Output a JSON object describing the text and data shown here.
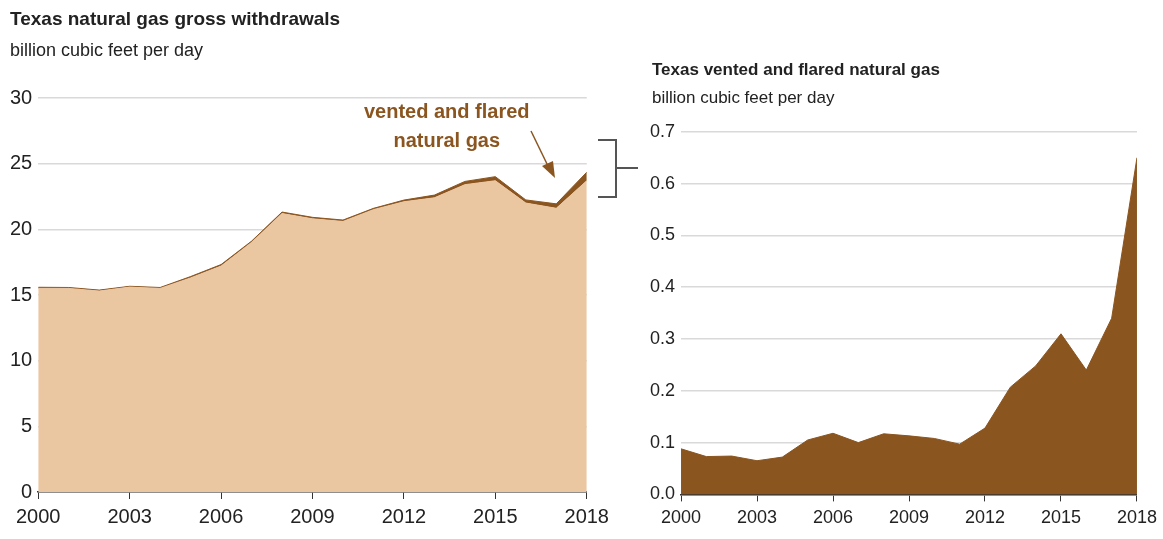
{
  "chart_data": [
    {
      "type": "area",
      "title": "Texas natural gas gross withdrawals",
      "subtitle": "billion cubic feet per day",
      "stacked": true,
      "grid": "y",
      "x": [
        2000,
        2001,
        2002,
        2003,
        2004,
        2005,
        2006,
        2007,
        2008,
        2009,
        2010,
        2011,
        2012,
        2013,
        2014,
        2015,
        2016,
        2017,
        2018
      ],
      "series": [
        {
          "color": "#eac6a1",
          "values": [
            15.5,
            15.5,
            15.3,
            15.6,
            15.5,
            16.3,
            17.2,
            19.0,
            21.2,
            20.8,
            20.6,
            21.5,
            22.1,
            22.4,
            23.4,
            23.7,
            22.0,
            21.6,
            23.7
          ]
        },
        {
          "name": "vented and flared natural gas",
          "color": "#8b5520",
          "values": [
            0.088,
            0.073,
            0.074,
            0.065,
            0.072,
            0.105,
            0.118,
            0.1,
            0.117,
            0.113,
            0.108,
            0.097,
            0.128,
            0.207,
            0.248,
            0.31,
            0.24,
            0.34,
            0.65
          ]
        }
      ],
      "xlim": [
        2000,
        2018
      ],
      "xticks": [
        2000,
        2003,
        2006,
        2009,
        2012,
        2015,
        2018
      ],
      "ylim": [
        0,
        30
      ],
      "yticks": [
        0,
        5,
        10,
        15,
        20,
        25,
        30
      ]
    },
    {
      "type": "area",
      "title": "Texas vented and flared natural gas",
      "subtitle": "billion cubic feet per day",
      "grid": "y",
      "x": [
        2000,
        2001,
        2002,
        2003,
        2004,
        2005,
        2006,
        2007,
        2008,
        2009,
        2010,
        2011,
        2012,
        2013,
        2014,
        2015,
        2016,
        2017,
        2018
      ],
      "series": [
        {
          "color": "#8b5520",
          "values": [
            0.088,
            0.073,
            0.074,
            0.065,
            0.072,
            0.105,
            0.118,
            0.1,
            0.117,
            0.113,
            0.108,
            0.097,
            0.128,
            0.207,
            0.248,
            0.31,
            0.24,
            0.34,
            0.65
          ]
        }
      ],
      "xlim": [
        2000,
        2018
      ],
      "xticks": [
        2000,
        2003,
        2006,
        2009,
        2012,
        2015,
        2018
      ],
      "ylim": [
        0,
        0.7
      ],
      "yticks": [
        {
          "value": 0,
          "label": "0.0"
        },
        0.1,
        0.2,
        0.3,
        0.4,
        0.5,
        0.6,
        0.7
      ]
    }
  ]
}
